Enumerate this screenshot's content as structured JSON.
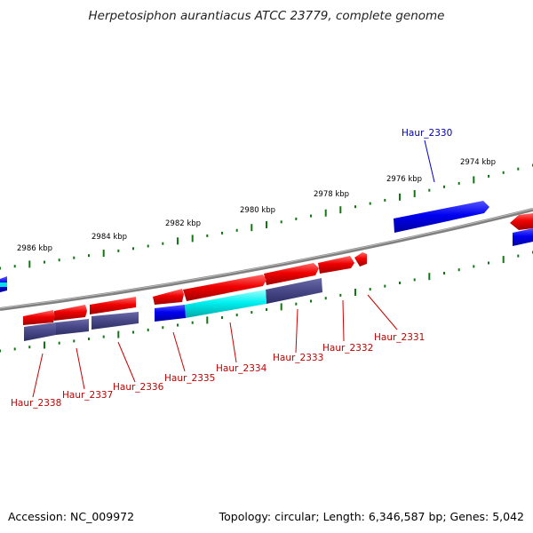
{
  "title": "Herpetosiphon aurantiacus ATCC 23779, complete genome",
  "accession_text": "Accession: NC_009972",
  "topology_text": "Topology: circular; Length: 6,346,587 bp; Genes: 5,042",
  "kbp_labels": [
    "2974 kbp",
    "2976 kbp",
    "2978 kbp",
    "2980 kbp",
    "2982 kbp",
    "2984 kbp",
    "2986 kbp"
  ],
  "gene_labels": [
    {
      "text": "Haur_2330",
      "color": "#0000aa"
    },
    {
      "text": "Haur_2331",
      "color": "#c00000"
    },
    {
      "text": "Haur_2332",
      "color": "#c00000"
    },
    {
      "text": "Haur_2333",
      "color": "#c00000"
    },
    {
      "text": "Haur_2334",
      "color": "#c00000"
    },
    {
      "text": "Haur_2335",
      "color": "#c00000"
    },
    {
      "text": "Haur_2336",
      "color": "#c00000"
    },
    {
      "text": "Haur_2337",
      "color": "#c00000"
    },
    {
      "text": "Haur_2338",
      "color": "#c00000"
    }
  ],
  "colors": {
    "gene_red": "#e00000",
    "gene_blue": "#0000e0",
    "domain_cyan": "#00e0e0",
    "domain_slate": "#4a4a8a",
    "backbone": "#808080",
    "tick_green": "#117711"
  }
}
